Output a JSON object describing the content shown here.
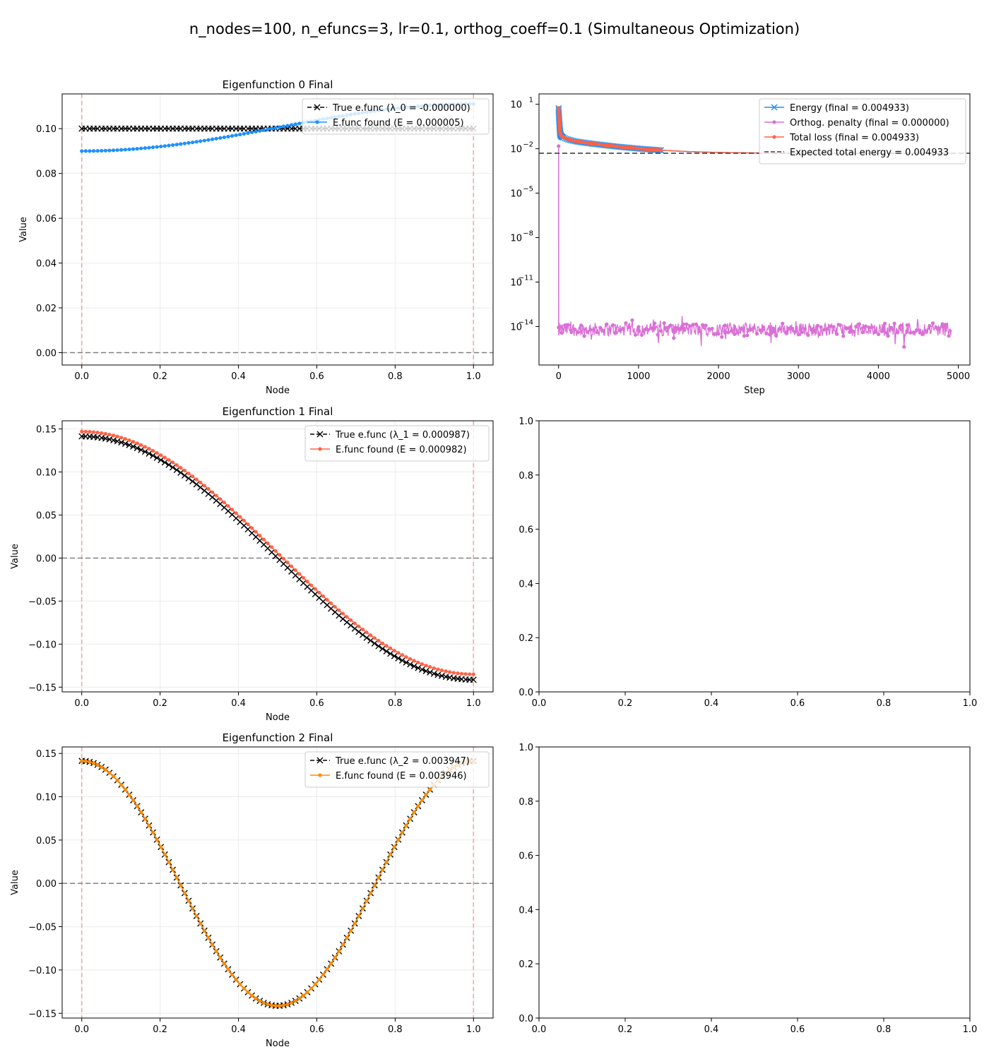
{
  "figure_title": "n_nodes=100, n_efuncs=3, lr=0.1, orthog_coeff=0.1 (Simultaneous Optimization)",
  "colors": {
    "true": "#000000",
    "efunc0": "#1e90ff",
    "efunc1": "#ff6347",
    "efunc2": "#ff8c00",
    "energy": "#1e90ff",
    "orthog": "#da70d6",
    "total": "#ff6347",
    "expected": "#404040",
    "boundary": "#f4a39a",
    "zero": "#808080"
  },
  "chart_data": [
    {
      "id": "efunc0",
      "type": "line",
      "title": "Eigenfunction 0 Final",
      "xlabel": "Node",
      "ylabel": "Value",
      "xlim": [
        -0.05,
        1.05
      ],
      "ylim": [
        -0.0055,
        0.1155
      ],
      "xticks": [
        0.0,
        0.2,
        0.4,
        0.6,
        0.8,
        1.0
      ],
      "xtick_labels": [
        "0.0",
        "0.2",
        "0.4",
        "0.6",
        "0.8",
        "1.0"
      ],
      "yticks": [
        0.0,
        0.02,
        0.04,
        0.06,
        0.08,
        0.1
      ],
      "ytick_labels": [
        "0.00",
        "0.02",
        "0.04",
        "0.06",
        "0.08",
        "0.10"
      ],
      "hline": 0,
      "vlines": [
        0,
        1
      ],
      "grid": true,
      "legend": "upper right",
      "n_points": 100,
      "series": [
        {
          "name": "True e.func (λ_0 = -0.000000)",
          "color_key": "true",
          "marker": "x",
          "dash": true,
          "func": "const",
          "params": [
            0.1
          ]
        },
        {
          "name": "E.func found (E = 0.000005)",
          "color_key": "efunc0",
          "marker": "dot",
          "dash": false,
          "func": "cos",
          "params": [
            0.1005,
            -0.0105,
            1
          ]
        }
      ]
    },
    {
      "id": "loss",
      "type": "line",
      "title": "",
      "xlabel": "Step",
      "ylabel": "",
      "yscale": "log",
      "xlim": [
        -245,
        5145
      ],
      "ylim_log10": [
        -16.6,
        1.7
      ],
      "xticks": [
        0,
        1000,
        2000,
        3000,
        4000,
        5000
      ],
      "xtick_labels": [
        "0",
        "1000",
        "2000",
        "3000",
        "4000",
        "5000"
      ],
      "yticks_log10": [
        1,
        -2,
        -5,
        -8,
        -11,
        -14
      ],
      "ytick_labels": [
        "10",
        "10",
        "10",
        "10",
        "10",
        "10"
      ],
      "ytick_exponents": [
        "1",
        "−2",
        "−5",
        "−8",
        "−11",
        "−14"
      ],
      "expected_total_energy": 0.004933,
      "grid": false,
      "legend": "upper right",
      "steps": 4920,
      "series": [
        {
          "name": "Energy (final = 0.004933)",
          "color_key": "energy",
          "marker": "x",
          "final": 0.004933,
          "start": 6.0
        },
        {
          "name": "Orthog. penalty (final = 0.000000)",
          "color_key": "orthog",
          "marker": "dot",
          "final": 0.0,
          "spike": 0.015,
          "noise_log10_center": -14.2
        },
        {
          "name": "Total loss (final = 0.004933)",
          "color_key": "total",
          "marker": "dot",
          "final": 0.004933,
          "start": 6.0
        },
        {
          "name": "Expected total energy = 0.004933",
          "color_key": "expected",
          "marker": "none",
          "dash": true,
          "final": 0.004933
        }
      ]
    },
    {
      "id": "efunc1",
      "type": "line",
      "title": "Eigenfunction 1 Final",
      "xlabel": "Node",
      "ylabel": "Value",
      "xlim": [
        -0.05,
        1.05
      ],
      "ylim": [
        -0.1555,
        0.1595
      ],
      "xticks": [
        0.0,
        0.2,
        0.4,
        0.6,
        0.8,
        1.0
      ],
      "xtick_labels": [
        "0.0",
        "0.2",
        "0.4",
        "0.6",
        "0.8",
        "1.0"
      ],
      "yticks": [
        -0.15,
        -0.1,
        -0.05,
        0.0,
        0.05,
        0.1,
        0.15
      ],
      "ytick_labels": [
        "−0.15",
        "−0.10",
        "−0.05",
        "0.00",
        "0.05",
        "0.10",
        "0.15"
      ],
      "hline": 0,
      "vlines": [
        0,
        1
      ],
      "grid": true,
      "legend": "upper right",
      "n_points": 100,
      "series": [
        {
          "name": "True e.func (λ_1 = 0.000987)",
          "color_key": "true",
          "marker": "x",
          "dash": true,
          "func": "cos",
          "params": [
            0,
            0.1414,
            1
          ]
        },
        {
          "name": "E.func found (E = 0.000982)",
          "color_key": "efunc1",
          "marker": "dot",
          "dash": false,
          "func": "cos",
          "params": [
            0.006,
            0.141,
            1
          ]
        }
      ]
    },
    {
      "id": "empty1",
      "type": "empty",
      "xlim": [
        0,
        1
      ],
      "ylim": [
        0,
        1
      ],
      "xticks": [
        0.0,
        0.2,
        0.4,
        0.6,
        0.8,
        1.0
      ],
      "xtick_labels": [
        "0.0",
        "0.2",
        "0.4",
        "0.6",
        "0.8",
        "1.0"
      ],
      "yticks": [
        0.0,
        0.2,
        0.4,
        0.6,
        0.8,
        1.0
      ],
      "ytick_labels": [
        "0.0",
        "0.2",
        "0.4",
        "0.6",
        "0.8",
        "1.0"
      ]
    },
    {
      "id": "efunc2",
      "type": "line",
      "title": "Eigenfunction 2 Final",
      "xlabel": "Node",
      "ylabel": "Value",
      "xlim": [
        -0.05,
        1.05
      ],
      "ylim": [
        -0.1555,
        0.1575
      ],
      "xticks": [
        0.0,
        0.2,
        0.4,
        0.6,
        0.8,
        1.0
      ],
      "xtick_labels": [
        "0.0",
        "0.2",
        "0.4",
        "0.6",
        "0.8",
        "1.0"
      ],
      "yticks": [
        -0.15,
        -0.1,
        -0.05,
        0.0,
        0.05,
        0.1,
        0.15
      ],
      "ytick_labels": [
        "−0.15",
        "−0.10",
        "−0.05",
        "0.00",
        "0.05",
        "0.10",
        "0.15"
      ],
      "hline": 0,
      "vlines": [
        0,
        1
      ],
      "grid": true,
      "legend": "upper right",
      "n_points": 100,
      "series": [
        {
          "name": "True e.func (λ_2 = 0.003947)",
          "color_key": "true",
          "marker": "x",
          "dash": true,
          "func": "cos",
          "params": [
            0,
            0.1414,
            2
          ]
        },
        {
          "name": "E.func found (E = 0.003946)",
          "color_key": "efunc2",
          "marker": "dot",
          "dash": false,
          "func": "cos",
          "params": [
            0,
            0.1414,
            2
          ]
        }
      ]
    },
    {
      "id": "empty2",
      "type": "empty",
      "xlim": [
        0,
        1
      ],
      "ylim": [
        0,
        1
      ],
      "xticks": [
        0.0,
        0.2,
        0.4,
        0.6,
        0.8,
        1.0
      ],
      "xtick_labels": [
        "0.0",
        "0.2",
        "0.4",
        "0.6",
        "0.8",
        "1.0"
      ],
      "yticks": [
        0.0,
        0.2,
        0.4,
        0.6,
        0.8,
        1.0
      ],
      "ytick_labels": [
        "0.0",
        "0.2",
        "0.4",
        "0.6",
        "0.8",
        "1.0"
      ]
    }
  ]
}
